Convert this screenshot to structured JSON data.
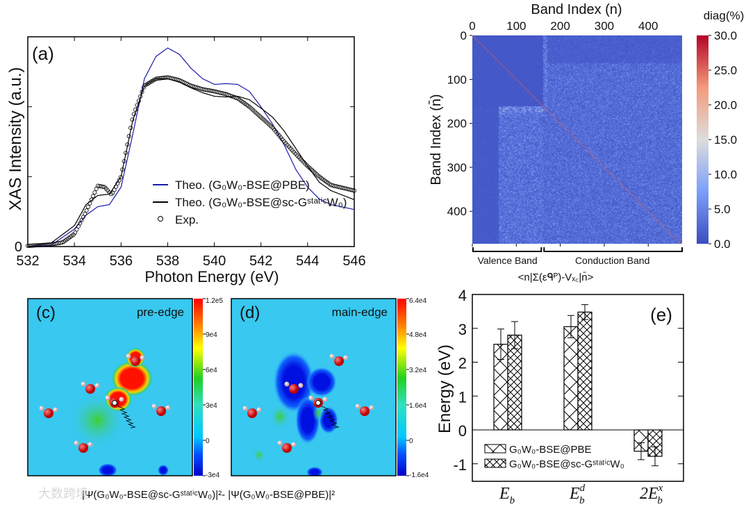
{
  "watermark": "大数跨境",
  "chart_data": [
    {
      "panel": "(a)",
      "type": "line",
      "xlabel": "Photon Energy (eV)",
      "ylabel": "XAS Intensity (a.u.)",
      "xlim": [
        532,
        546
      ],
      "ylim": [
        0,
        3
      ],
      "xticks": [
        "532",
        "534",
        "536",
        "538",
        "540",
        "542",
        "544",
        "546"
      ],
      "yticks": [
        "0"
      ],
      "legend_position": "bottom-center",
      "series": [
        {
          "name": "Theo. (G₀W₀-BSE@PBE)",
          "style": "line",
          "color": "#1a1aa8",
          "x": [
            532,
            533,
            534,
            534.5,
            535,
            535.5,
            536,
            536.5,
            537,
            537.5,
            538,
            538.5,
            539,
            539.5,
            540,
            540.5,
            541,
            541.5,
            542,
            542.5,
            543,
            543.5,
            544,
            544.5,
            545,
            546
          ],
          "y": [
            0,
            0.02,
            0.25,
            0.45,
            0.57,
            0.6,
            0.85,
            1.6,
            2.4,
            2.72,
            2.84,
            2.75,
            2.55,
            2.4,
            2.32,
            2.33,
            2.32,
            2.22,
            2.0,
            1.75,
            1.45,
            1.1,
            0.85,
            0.68,
            0.6,
            0.53
          ]
        },
        {
          "name": "Theo. (G₀W₀-BSE@sc-GˢᵗᵃᵗⁱᶜW₀)",
          "style": "line",
          "color": "#000000",
          "x": [
            532,
            533,
            534,
            534.5,
            535,
            535.5,
            536,
            536.5,
            537,
            537.5,
            538,
            538.5,
            539,
            539.5,
            540,
            540.5,
            541,
            541.5,
            542,
            542.5,
            543,
            543.5,
            544,
            544.5,
            545,
            546
          ],
          "y": [
            0,
            0.05,
            0.3,
            0.6,
            0.73,
            0.75,
            1.0,
            1.8,
            2.3,
            2.4,
            2.4,
            2.35,
            2.27,
            2.2,
            2.15,
            2.14,
            2.15,
            2.1,
            1.98,
            1.85,
            1.65,
            1.4,
            1.15,
            0.92,
            0.8,
            0.67
          ]
        },
        {
          "name": "Exp.",
          "style": "markers",
          "color": "#000000",
          "x": [
            532,
            533,
            533.5,
            534,
            534.5,
            535,
            535.3,
            535.6,
            536,
            536.5,
            537,
            537.5,
            538,
            538.5,
            539,
            539.5,
            540,
            540.5,
            541,
            541.5,
            542,
            542.5,
            543,
            543.5,
            544,
            544.5,
            545,
            546
          ],
          "y": [
            0.01,
            0.03,
            0.06,
            0.18,
            0.5,
            0.87,
            0.85,
            0.74,
            1.0,
            1.85,
            2.3,
            2.4,
            2.42,
            2.38,
            2.3,
            2.25,
            2.22,
            2.18,
            2.12,
            2.0,
            1.85,
            1.7,
            1.5,
            1.32,
            1.15,
            1.0,
            0.88,
            0.8
          ]
        }
      ]
    },
    {
      "panel": "(b)",
      "type": "heatmap",
      "xlabel": "Band Index (n)",
      "ylabel": "Band Index (n̄)",
      "xticks": [
        "0",
        "100",
        "200",
        "300",
        "400"
      ],
      "yticks": [
        "0",
        "100",
        "200",
        "300",
        "400"
      ],
      "n_bands": 477,
      "valence_bands": 160,
      "colorbar_label": "diag(%)",
      "colorbar_ticks": [
        "30.0",
        "25.0",
        "20.0",
        "15.0",
        "10.0",
        "5.0",
        "0.0"
      ],
      "colorbar_range": [
        0,
        30
      ],
      "region_labels": [
        "Valence Band",
        "Conduction Band"
      ],
      "bottom_label": "<n|Σ(εᑫᴾ)-Vₓ꜀|n̄>",
      "bottom_label_parts": {
        "pre": "<n|Σ(ε",
        "sup": "QP",
        "mid": ")-V",
        "sub": "xc",
        "post": "|n̄>"
      }
    },
    {
      "panel": "(c)",
      "type": "heatmap",
      "title": "pre-edge",
      "colorbar_ticks": [
        "1.2e5",
        "9e4",
        "6e4",
        "3e4",
        "0",
        "-3e4"
      ]
    },
    {
      "panel": "(d)",
      "type": "heatmap",
      "title": "main-edge",
      "colorbar_ticks": [
        "6.4e4",
        "4.8e4",
        "3.2e4",
        "1.6e4",
        "0",
        "-1.6e4"
      ]
    },
    {
      "panel": "(e)",
      "type": "bar",
      "ylabel": "Energy (eV)",
      "ylim": [
        -1.5,
        4
      ],
      "yticks": [
        "-1",
        "0",
        "1",
        "2",
        "3",
        "4"
      ],
      "categories": [
        "E_b",
        "E_b^d",
        "2E_b^x"
      ],
      "legend_position": "bottom-left",
      "series": [
        {
          "name": "G₀W₀-BSE@PBE",
          "values": [
            2.53,
            3.05,
            -0.63
          ],
          "errors": [
            0.45,
            0.33,
            0.25
          ]
        },
        {
          "name": "G₀W₀-BSE@sc-GˢᵗᵃᵗⁱᶜW₀",
          "values": [
            2.8,
            3.48,
            -0.78
          ],
          "errors": [
            0.4,
            0.22,
            0.28
          ]
        }
      ]
    }
  ],
  "caption_cd": "|Ψ(G₀W₀-BSE@sc-GˢᵗᵃᵗⁱᶜW₀)|²- |Ψ(G₀W₀-BSE@PBE)|²"
}
